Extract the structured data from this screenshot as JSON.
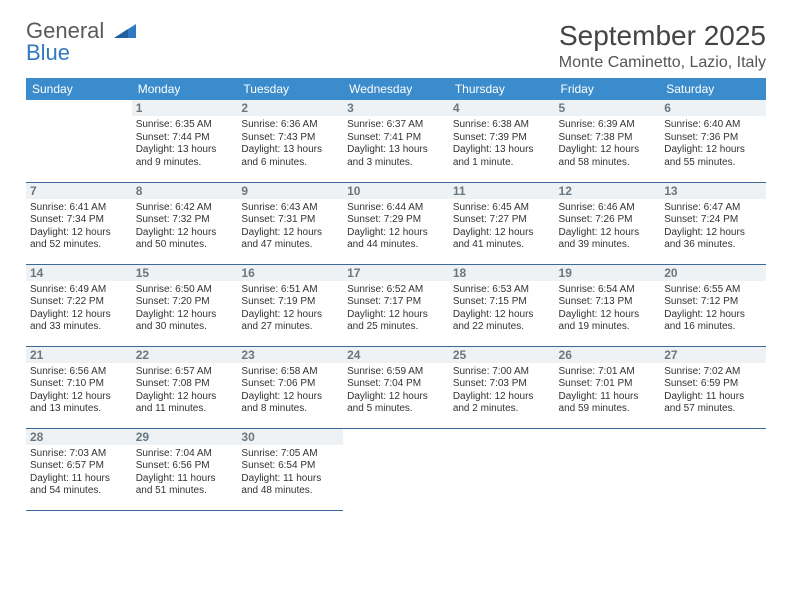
{
  "logo": {
    "line1": "General",
    "line2": "Blue"
  },
  "title": "September 2025",
  "location": "Monte Caminetto, Lazio, Italy",
  "colors": {
    "header_bg": "#3b8ccc",
    "header_fg": "#ffffff",
    "daynum_bg": "#eef2f5",
    "daynum_fg": "#6b7780",
    "rule": "#3b6a99",
    "logo_gray": "#5a5a5a",
    "logo_blue": "#2f79c2",
    "text": "#333333",
    "page_bg": "#ffffff"
  },
  "day_labels": [
    "Sunday",
    "Monday",
    "Tuesday",
    "Wednesday",
    "Thursday",
    "Friday",
    "Saturday"
  ],
  "weeks": [
    [
      {
        "n": "",
        "sr": "",
        "ss": "",
        "dl1": "",
        "dl2": ""
      },
      {
        "n": "1",
        "sr": "Sunrise: 6:35 AM",
        "ss": "Sunset: 7:44 PM",
        "dl1": "Daylight: 13 hours",
        "dl2": "and 9 minutes."
      },
      {
        "n": "2",
        "sr": "Sunrise: 6:36 AM",
        "ss": "Sunset: 7:43 PM",
        "dl1": "Daylight: 13 hours",
        "dl2": "and 6 minutes."
      },
      {
        "n": "3",
        "sr": "Sunrise: 6:37 AM",
        "ss": "Sunset: 7:41 PM",
        "dl1": "Daylight: 13 hours",
        "dl2": "and 3 minutes."
      },
      {
        "n": "4",
        "sr": "Sunrise: 6:38 AM",
        "ss": "Sunset: 7:39 PM",
        "dl1": "Daylight: 13 hours",
        "dl2": "and 1 minute."
      },
      {
        "n": "5",
        "sr": "Sunrise: 6:39 AM",
        "ss": "Sunset: 7:38 PM",
        "dl1": "Daylight: 12 hours",
        "dl2": "and 58 minutes."
      },
      {
        "n": "6",
        "sr": "Sunrise: 6:40 AM",
        "ss": "Sunset: 7:36 PM",
        "dl1": "Daylight: 12 hours",
        "dl2": "and 55 minutes."
      }
    ],
    [
      {
        "n": "7",
        "sr": "Sunrise: 6:41 AM",
        "ss": "Sunset: 7:34 PM",
        "dl1": "Daylight: 12 hours",
        "dl2": "and 52 minutes."
      },
      {
        "n": "8",
        "sr": "Sunrise: 6:42 AM",
        "ss": "Sunset: 7:32 PM",
        "dl1": "Daylight: 12 hours",
        "dl2": "and 50 minutes."
      },
      {
        "n": "9",
        "sr": "Sunrise: 6:43 AM",
        "ss": "Sunset: 7:31 PM",
        "dl1": "Daylight: 12 hours",
        "dl2": "and 47 minutes."
      },
      {
        "n": "10",
        "sr": "Sunrise: 6:44 AM",
        "ss": "Sunset: 7:29 PM",
        "dl1": "Daylight: 12 hours",
        "dl2": "and 44 minutes."
      },
      {
        "n": "11",
        "sr": "Sunrise: 6:45 AM",
        "ss": "Sunset: 7:27 PM",
        "dl1": "Daylight: 12 hours",
        "dl2": "and 41 minutes."
      },
      {
        "n": "12",
        "sr": "Sunrise: 6:46 AM",
        "ss": "Sunset: 7:26 PM",
        "dl1": "Daylight: 12 hours",
        "dl2": "and 39 minutes."
      },
      {
        "n": "13",
        "sr": "Sunrise: 6:47 AM",
        "ss": "Sunset: 7:24 PM",
        "dl1": "Daylight: 12 hours",
        "dl2": "and 36 minutes."
      }
    ],
    [
      {
        "n": "14",
        "sr": "Sunrise: 6:49 AM",
        "ss": "Sunset: 7:22 PM",
        "dl1": "Daylight: 12 hours",
        "dl2": "and 33 minutes."
      },
      {
        "n": "15",
        "sr": "Sunrise: 6:50 AM",
        "ss": "Sunset: 7:20 PM",
        "dl1": "Daylight: 12 hours",
        "dl2": "and 30 minutes."
      },
      {
        "n": "16",
        "sr": "Sunrise: 6:51 AM",
        "ss": "Sunset: 7:19 PM",
        "dl1": "Daylight: 12 hours",
        "dl2": "and 27 minutes."
      },
      {
        "n": "17",
        "sr": "Sunrise: 6:52 AM",
        "ss": "Sunset: 7:17 PM",
        "dl1": "Daylight: 12 hours",
        "dl2": "and 25 minutes."
      },
      {
        "n": "18",
        "sr": "Sunrise: 6:53 AM",
        "ss": "Sunset: 7:15 PM",
        "dl1": "Daylight: 12 hours",
        "dl2": "and 22 minutes."
      },
      {
        "n": "19",
        "sr": "Sunrise: 6:54 AM",
        "ss": "Sunset: 7:13 PM",
        "dl1": "Daylight: 12 hours",
        "dl2": "and 19 minutes."
      },
      {
        "n": "20",
        "sr": "Sunrise: 6:55 AM",
        "ss": "Sunset: 7:12 PM",
        "dl1": "Daylight: 12 hours",
        "dl2": "and 16 minutes."
      }
    ],
    [
      {
        "n": "21",
        "sr": "Sunrise: 6:56 AM",
        "ss": "Sunset: 7:10 PM",
        "dl1": "Daylight: 12 hours",
        "dl2": "and 13 minutes."
      },
      {
        "n": "22",
        "sr": "Sunrise: 6:57 AM",
        "ss": "Sunset: 7:08 PM",
        "dl1": "Daylight: 12 hours",
        "dl2": "and 11 minutes."
      },
      {
        "n": "23",
        "sr": "Sunrise: 6:58 AM",
        "ss": "Sunset: 7:06 PM",
        "dl1": "Daylight: 12 hours",
        "dl2": "and 8 minutes."
      },
      {
        "n": "24",
        "sr": "Sunrise: 6:59 AM",
        "ss": "Sunset: 7:04 PM",
        "dl1": "Daylight: 12 hours",
        "dl2": "and 5 minutes."
      },
      {
        "n": "25",
        "sr": "Sunrise: 7:00 AM",
        "ss": "Sunset: 7:03 PM",
        "dl1": "Daylight: 12 hours",
        "dl2": "and 2 minutes."
      },
      {
        "n": "26",
        "sr": "Sunrise: 7:01 AM",
        "ss": "Sunset: 7:01 PM",
        "dl1": "Daylight: 11 hours",
        "dl2": "and 59 minutes."
      },
      {
        "n": "27",
        "sr": "Sunrise: 7:02 AM",
        "ss": "Sunset: 6:59 PM",
        "dl1": "Daylight: 11 hours",
        "dl2": "and 57 minutes."
      }
    ],
    [
      {
        "n": "28",
        "sr": "Sunrise: 7:03 AM",
        "ss": "Sunset: 6:57 PM",
        "dl1": "Daylight: 11 hours",
        "dl2": "and 54 minutes."
      },
      {
        "n": "29",
        "sr": "Sunrise: 7:04 AM",
        "ss": "Sunset: 6:56 PM",
        "dl1": "Daylight: 11 hours",
        "dl2": "and 51 minutes."
      },
      {
        "n": "30",
        "sr": "Sunrise: 7:05 AM",
        "ss": "Sunset: 6:54 PM",
        "dl1": "Daylight: 11 hours",
        "dl2": "and 48 minutes."
      },
      {
        "n": "",
        "sr": "",
        "ss": "",
        "dl1": "",
        "dl2": ""
      },
      {
        "n": "",
        "sr": "",
        "ss": "",
        "dl1": "",
        "dl2": ""
      },
      {
        "n": "",
        "sr": "",
        "ss": "",
        "dl1": "",
        "dl2": ""
      },
      {
        "n": "",
        "sr": "",
        "ss": "",
        "dl1": "",
        "dl2": ""
      }
    ]
  ]
}
